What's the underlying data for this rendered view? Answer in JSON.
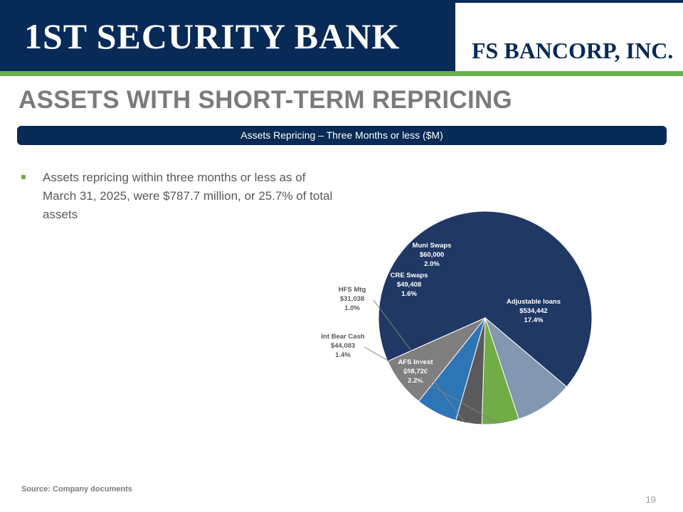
{
  "header": {
    "left_brand": "1ST SECURITY BANK",
    "right_brand": "FS BANCORP, INC."
  },
  "title": "ASSETS WITH SHORT-TERM REPRICING",
  "subheader": "Assets Repricing – Three Months or less ($M)",
  "bullet": "Assets repricing within three months or less as of March 31, 2025, were $787.7 million, or 25.7% of total assets",
  "chart_data": {
    "type": "pie",
    "slices": [
      {
        "label": "Adjustable loans",
        "value": 534442,
        "value_label": "$534,442",
        "pct_label": "17.4%",
        "color": "#203864"
      },
      {
        "label": "AFS Invest",
        "value": 68726,
        "value_label": "$68,726",
        "pct_label": "2.2%",
        "color": "#8497b0"
      },
      {
        "label": "Int Bear Cash",
        "value": 44083,
        "value_label": "$44,083",
        "pct_label": "1.4%",
        "color": "#70ad47"
      },
      {
        "label": "HFS Mtg",
        "value": 31038,
        "value_label": "$31,038",
        "pct_label": "1.0%",
        "color": "#5a5a5a"
      },
      {
        "label": "CRE Swaps",
        "value": 49408,
        "value_label": "$49,408",
        "pct_label": "1.6%",
        "color": "#2e75b6"
      },
      {
        "label": "Muni Swaps",
        "value": 60000,
        "value_label": "$60,000",
        "pct_label": "2.0%",
        "color": "#7f7f7f"
      }
    ]
  },
  "footer": {
    "source": "Source: Company documents",
    "page": "19"
  }
}
